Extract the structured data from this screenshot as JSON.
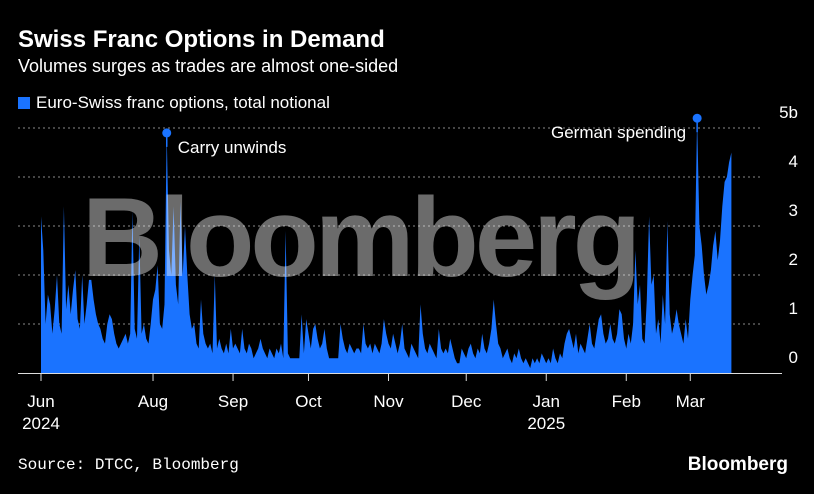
{
  "header": {
    "title": "Swiss Franc Options in Demand",
    "subtitle": "Volumes surges as trades are almost one-sided"
  },
  "footer": {
    "source": "Source: DTCC, Bloomberg",
    "brand": "Bloomberg"
  },
  "watermark": "Bloomberg",
  "colors": {
    "background": "#000000",
    "series": "#1a73ff",
    "grid": "#8a8a8a",
    "text": "#ffffff"
  },
  "chart_data": {
    "type": "area",
    "title": "Swiss Franc Options in Demand",
    "subtitle": "Volumes surges as trades are almost one-sided",
    "series_name": "Euro-Swiss franc options, total notional",
    "unit": "billions",
    "ylim": [
      0,
      5
    ],
    "yticks": [
      {
        "value": 0,
        "label": "0"
      },
      {
        "value": 1,
        "label": "1"
      },
      {
        "value": 2,
        "label": "2"
      },
      {
        "value": 3,
        "label": "3"
      },
      {
        "value": 4,
        "label": "4"
      },
      {
        "value": 5,
        "label": "5b"
      }
    ],
    "grid": true,
    "x_range_days": [
      0,
      304
    ],
    "xticks": [
      {
        "day": 0,
        "label": "Jun",
        "label2": "2024"
      },
      {
        "day": 49,
        "label": "Aug",
        "label2": ""
      },
      {
        "day": 84,
        "label": "Sep",
        "label2": ""
      },
      {
        "day": 117,
        "label": "Oct",
        "label2": ""
      },
      {
        "day": 152,
        "label": "Nov",
        "label2": ""
      },
      {
        "day": 186,
        "label": "Dec",
        "label2": ""
      },
      {
        "day": 221,
        "label": "Jan",
        "label2": "2025"
      },
      {
        "day": 256,
        "label": "Feb",
        "label2": ""
      },
      {
        "day": 284,
        "label": "Mar",
        "label2": ""
      }
    ],
    "points": [
      [
        0,
        3.2
      ],
      [
        1,
        2.5
      ],
      [
        2,
        1.0
      ],
      [
        3,
        1.6
      ],
      [
        4,
        1.4
      ],
      [
        5,
        0.8
      ],
      [
        6,
        1.3
      ],
      [
        7,
        2.0
      ],
      [
        8,
        1.0
      ],
      [
        9,
        0.8
      ],
      [
        10,
        3.4
      ],
      [
        11,
        1.3
      ],
      [
        12,
        1.8
      ],
      [
        13,
        1.2
      ],
      [
        14,
        1.7
      ],
      [
        15,
        2.1
      ],
      [
        16,
        1.1
      ],
      [
        17,
        0.9
      ],
      [
        18,
        2.0
      ],
      [
        19,
        1.0
      ],
      [
        20,
        1.4
      ],
      [
        21,
        1.9
      ],
      [
        22,
        1.9
      ],
      [
        23,
        1.5
      ],
      [
        24,
        1.2
      ],
      [
        25,
        1.0
      ],
      [
        26,
        0.9
      ],
      [
        27,
        0.7
      ],
      [
        28,
        0.6
      ],
      [
        29,
        1.0
      ],
      [
        30,
        1.2
      ],
      [
        31,
        1.1
      ],
      [
        32,
        0.8
      ],
      [
        33,
        0.6
      ],
      [
        34,
        0.5
      ],
      [
        35,
        0.6
      ],
      [
        36,
        0.7
      ],
      [
        37,
        0.8
      ],
      [
        38,
        0.6
      ],
      [
        39,
        0.8
      ],
      [
        40,
        3.3
      ],
      [
        41,
        0.9
      ],
      [
        42,
        0.7
      ],
      [
        43,
        2.8
      ],
      [
        44,
        0.8
      ],
      [
        45,
        1.0
      ],
      [
        46,
        0.7
      ],
      [
        47,
        0.6
      ],
      [
        48,
        1.0
      ],
      [
        49,
        1.5
      ],
      [
        50,
        1.7
      ],
      [
        51,
        2.2
      ],
      [
        52,
        1.0
      ],
      [
        53,
        0.9
      ],
      [
        54,
        1.4
      ],
      [
        55,
        4.9
      ],
      [
        56,
        2.5
      ],
      [
        57,
        2.0
      ],
      [
        58,
        3.4
      ],
      [
        59,
        1.8
      ],
      [
        60,
        1.4
      ],
      [
        61,
        3.5
      ],
      [
        62,
        2.0
      ],
      [
        63,
        3.0
      ],
      [
        64,
        2.0
      ],
      [
        65,
        1.2
      ],
      [
        66,
        0.9
      ],
      [
        67,
        1.0
      ],
      [
        68,
        0.6
      ],
      [
        69,
        0.5
      ],
      [
        70,
        1.5
      ],
      [
        71,
        0.8
      ],
      [
        72,
        0.6
      ],
      [
        73,
        0.5
      ],
      [
        74,
        0.6
      ],
      [
        75,
        0.4
      ],
      [
        76,
        2.0
      ],
      [
        77,
        0.5
      ],
      [
        78,
        0.7
      ],
      [
        79,
        0.5
      ],
      [
        80,
        0.4
      ],
      [
        81,
        0.6
      ],
      [
        82,
        0.4
      ],
      [
        83,
        0.9
      ],
      [
        84,
        0.5
      ],
      [
        85,
        0.6
      ],
      [
        86,
        0.5
      ],
      [
        87,
        0.4
      ],
      [
        88,
        0.9
      ],
      [
        89,
        0.5
      ],
      [
        90,
        0.4
      ],
      [
        91,
        0.6
      ],
      [
        92,
        0.5
      ],
      [
        93,
        0.3
      ],
      [
        94,
        0.4
      ],
      [
        95,
        0.5
      ],
      [
        96,
        0.7
      ],
      [
        97,
        0.5
      ],
      [
        98,
        0.4
      ],
      [
        99,
        0.3
      ],
      [
        100,
        0.5
      ],
      [
        101,
        0.4
      ],
      [
        102,
        0.3
      ],
      [
        103,
        0.5
      ],
      [
        104,
        0.4
      ],
      [
        105,
        0.6
      ],
      [
        106,
        0.3
      ],
      [
        107,
        2.9
      ],
      [
        108,
        0.4
      ],
      [
        109,
        0.3
      ],
      [
        110,
        0.3
      ],
      [
        111,
        0.3
      ],
      [
        112,
        0.3
      ],
      [
        113,
        0.3
      ],
      [
        114,
        1.2
      ],
      [
        115,
        0.4
      ],
      [
        116,
        1.1
      ],
      [
        117,
        0.8
      ],
      [
        118,
        0.5
      ],
      [
        119,
        0.9
      ],
      [
        120,
        1.0
      ],
      [
        121,
        0.7
      ],
      [
        122,
        0.5
      ],
      [
        123,
        0.6
      ],
      [
        124,
        0.9
      ],
      [
        125,
        0.5
      ],
      [
        126,
        0.3
      ],
      [
        127,
        0.3
      ],
      [
        128,
        0.3
      ],
      [
        129,
        0.3
      ],
      [
        130,
        0.3
      ],
      [
        131,
        1.0
      ],
      [
        132,
        0.7
      ],
      [
        133,
        0.5
      ],
      [
        134,
        0.4
      ],
      [
        135,
        0.6
      ],
      [
        136,
        0.5
      ],
      [
        137,
        0.4
      ],
      [
        138,
        0.5
      ],
      [
        139,
        0.5
      ],
      [
        140,
        0.4
      ],
      [
        141,
        1.0
      ],
      [
        142,
        0.6
      ],
      [
        143,
        0.5
      ],
      [
        144,
        0.6
      ],
      [
        145,
        0.4
      ],
      [
        146,
        0.6
      ],
      [
        147,
        0.5
      ],
      [
        148,
        0.4
      ],
      [
        149,
        0.6
      ],
      [
        150,
        1.1
      ],
      [
        151,
        0.8
      ],
      [
        152,
        0.6
      ],
      [
        153,
        0.5
      ],
      [
        154,
        0.8
      ],
      [
        155,
        0.6
      ],
      [
        156,
        0.4
      ],
      [
        157,
        0.6
      ],
      [
        158,
        1.0
      ],
      [
        159,
        0.5
      ],
      [
        160,
        0.4
      ],
      [
        161,
        0.3
      ],
      [
        162,
        0.6
      ],
      [
        163,
        0.5
      ],
      [
        164,
        0.4
      ],
      [
        165,
        0.3
      ],
      [
        166,
        1.4
      ],
      [
        167,
        0.8
      ],
      [
        168,
        0.5
      ],
      [
        169,
        0.4
      ],
      [
        170,
        0.6
      ],
      [
        171,
        0.5
      ],
      [
        172,
        0.4
      ],
      [
        173,
        0.3
      ],
      [
        174,
        0.9
      ],
      [
        175,
        0.5
      ],
      [
        176,
        0.4
      ],
      [
        177,
        0.5
      ],
      [
        178,
        0.4
      ],
      [
        179,
        0.7
      ],
      [
        180,
        0.5
      ],
      [
        181,
        0.3
      ],
      [
        182,
        0.2
      ],
      [
        183,
        0.2
      ],
      [
        184,
        0.5
      ],
      [
        185,
        0.4
      ],
      [
        186,
        0.3
      ],
      [
        187,
        0.5
      ],
      [
        188,
        0.6
      ],
      [
        189,
        0.4
      ],
      [
        190,
        0.3
      ],
      [
        191,
        0.5
      ],
      [
        192,
        0.4
      ],
      [
        193,
        0.8
      ],
      [
        194,
        0.5
      ],
      [
        195,
        0.4
      ],
      [
        196,
        0.6
      ],
      [
        197,
        0.9
      ],
      [
        198,
        1.5
      ],
      [
        199,
        1.0
      ],
      [
        200,
        0.6
      ],
      [
        201,
        0.5
      ],
      [
        202,
        0.3
      ],
      [
        203,
        0.4
      ],
      [
        204,
        0.5
      ],
      [
        205,
        0.3
      ],
      [
        206,
        0.2
      ],
      [
        207,
        0.4
      ],
      [
        208,
        0.3
      ],
      [
        209,
        0.5
      ],
      [
        210,
        0.3
      ],
      [
        211,
        0.2
      ],
      [
        212,
        0.3
      ],
      [
        213,
        0.2
      ],
      [
        214,
        0.1
      ],
      [
        215,
        0.3
      ],
      [
        216,
        0.2
      ],
      [
        217,
        0.3
      ],
      [
        218,
        0.2
      ],
      [
        219,
        0.4
      ],
      [
        220,
        0.3
      ],
      [
        221,
        0.2
      ],
      [
        222,
        0.3
      ],
      [
        223,
        0.2
      ],
      [
        224,
        0.5
      ],
      [
        225,
        0.3
      ],
      [
        226,
        0.2
      ],
      [
        227,
        0.4
      ],
      [
        228,
        0.3
      ],
      [
        229,
        0.6
      ],
      [
        230,
        0.8
      ],
      [
        231,
        0.9
      ],
      [
        232,
        0.7
      ],
      [
        233,
        0.5
      ],
      [
        234,
        0.8
      ],
      [
        235,
        0.4
      ],
      [
        236,
        0.6
      ],
      [
        237,
        0.5
      ],
      [
        238,
        0.4
      ],
      [
        239,
        0.7
      ],
      [
        240,
        1.0
      ],
      [
        241,
        0.6
      ],
      [
        242,
        0.5
      ],
      [
        243,
        0.8
      ],
      [
        244,
        1.1
      ],
      [
        245,
        1.2
      ],
      [
        246,
        0.8
      ],
      [
        247,
        0.6
      ],
      [
        248,
        0.7
      ],
      [
        249,
        1.0
      ],
      [
        250,
        0.7
      ],
      [
        251,
        0.6
      ],
      [
        252,
        0.8
      ],
      [
        253,
        1.3
      ],
      [
        254,
        1.2
      ],
      [
        255,
        0.7
      ],
      [
        256,
        0.5
      ],
      [
        257,
        0.8
      ],
      [
        258,
        0.6
      ],
      [
        259,
        1.0
      ],
      [
        260,
        2.5
      ],
      [
        261,
        1.4
      ],
      [
        262,
        1.8
      ],
      [
        263,
        0.7
      ],
      [
        264,
        0.6
      ],
      [
        265,
        1.5
      ],
      [
        266,
        3.2
      ],
      [
        267,
        1.8
      ],
      [
        268,
        2.0
      ],
      [
        269,
        0.8
      ],
      [
        270,
        1.1
      ],
      [
        271,
        0.6
      ],
      [
        272,
        1.6
      ],
      [
        273,
        1.0
      ],
      [
        274,
        3.1
      ],
      [
        275,
        1.2
      ],
      [
        276,
        0.8
      ],
      [
        277,
        1.0
      ],
      [
        278,
        1.3
      ],
      [
        279,
        1.0
      ],
      [
        280,
        0.8
      ],
      [
        281,
        0.6
      ],
      [
        282,
        1.1
      ],
      [
        283,
        0.7
      ],
      [
        284,
        1.5
      ],
      [
        285,
        2.0
      ],
      [
        286,
        2.4
      ],
      [
        287,
        5.2
      ],
      [
        288,
        3.0
      ],
      [
        289,
        2.6
      ],
      [
        290,
        2.0
      ],
      [
        291,
        1.6
      ],
      [
        292,
        1.8
      ],
      [
        293,
        2.1
      ],
      [
        294,
        2.6
      ],
      [
        295,
        2.9
      ],
      [
        296,
        2.3
      ],
      [
        297,
        2.7
      ],
      [
        298,
        3.4
      ],
      [
        299,
        3.9
      ],
      [
        300,
        4.0
      ],
      [
        301,
        4.3
      ],
      [
        302,
        4.5
      ]
    ],
    "annotations": [
      {
        "text": "Carry unwinds",
        "day": 55,
        "value": 4.9,
        "side": "right"
      },
      {
        "text": "German spending",
        "day": 287,
        "value": 5.2,
        "side": "left"
      }
    ]
  }
}
